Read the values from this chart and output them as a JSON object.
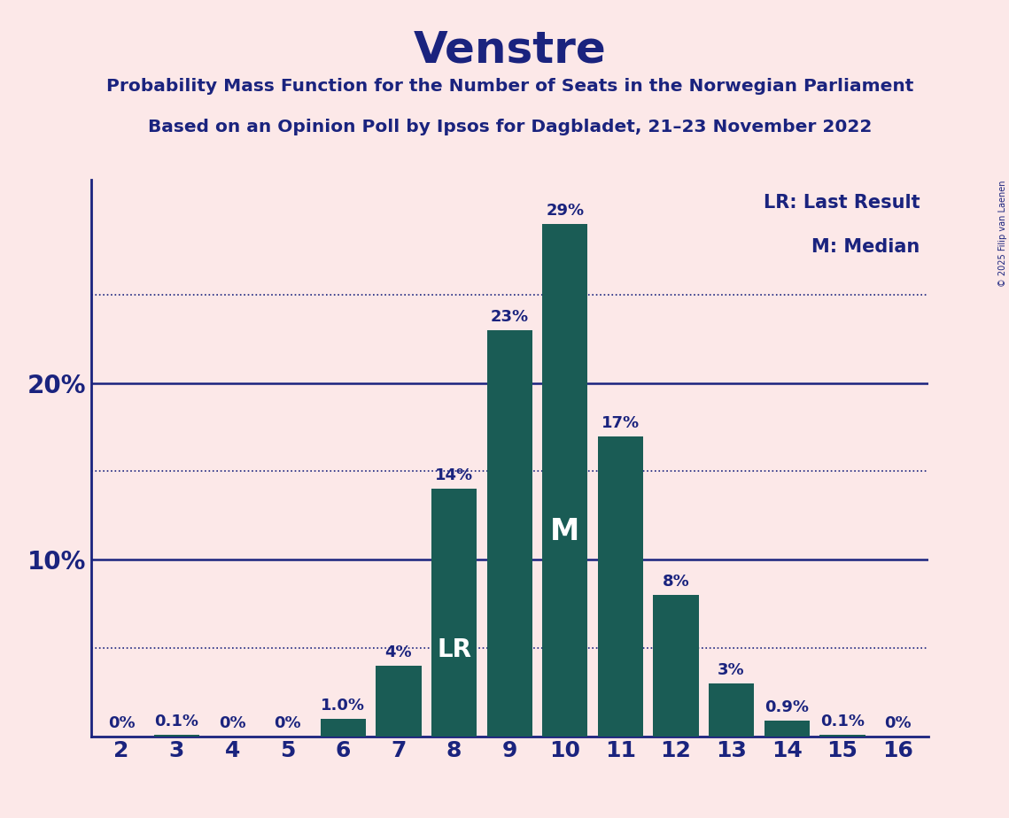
{
  "title": "Venstre",
  "subtitle1": "Probability Mass Function for the Number of Seats in the Norwegian Parliament",
  "subtitle2": "Based on an Opinion Poll by Ipsos for Dagbladet, 21–23 November 2022",
  "copyright": "© 2025 Filip van Laenen",
  "seats": [
    2,
    3,
    4,
    5,
    6,
    7,
    8,
    9,
    10,
    11,
    12,
    13,
    14,
    15,
    16
  ],
  "probabilities": [
    0.0,
    0.001,
    0.0,
    0.0,
    0.01,
    0.04,
    0.14,
    0.23,
    0.29,
    0.17,
    0.08,
    0.03,
    0.009,
    0.001,
    0.0
  ],
  "bar_labels": [
    "0%",
    "0.1%",
    "0%",
    "0%",
    "1.0%",
    "4%",
    "14%",
    "23%",
    "29%",
    "17%",
    "8%",
    "3%",
    "0.9%",
    "0.1%",
    "0%"
  ],
  "lr_seat": 8,
  "median_seat": 10,
  "bar_color": "#1a5c55",
  "background_color": "#fce8e8",
  "text_color": "#1a237e",
  "legend_lr": "LR: Last Result",
  "legend_m": "M: Median",
  "yticks_solid": [
    0.1,
    0.2
  ],
  "yticks_dotted": [
    0.05,
    0.15,
    0.25
  ],
  "ylim": [
    0,
    0.315
  ]
}
